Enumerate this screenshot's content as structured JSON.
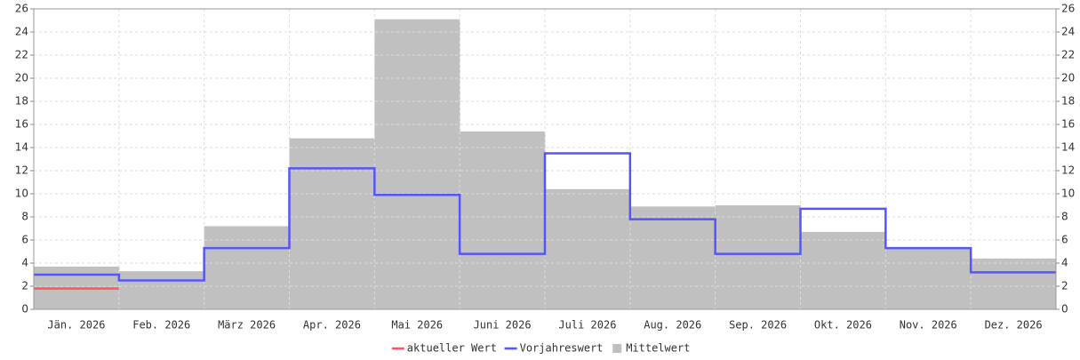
{
  "chart_data": {
    "type": "step",
    "categories": [
      "Jän. 2026",
      "Feb. 2026",
      "März 2026",
      "Apr. 2026",
      "Mai 2026",
      "Juni 2026",
      "Juli 2026",
      "Aug. 2026",
      "Sep. 2026",
      "Okt. 2026",
      "Nov. 2026",
      "Dez. 2026"
    ],
    "series": [
      {
        "name": "aktueller Wert",
        "color": "#ff5555",
        "kind": "line",
        "values": [
          1.8,
          null,
          null,
          null,
          null,
          null,
          null,
          null,
          null,
          null,
          null,
          null
        ]
      },
      {
        "name": "Vorjahreswert",
        "color": "#5555ff",
        "kind": "line",
        "values": [
          3.0,
          2.5,
          5.3,
          12.2,
          9.9,
          4.8,
          13.5,
          7.8,
          4.8,
          8.7,
          5.3,
          3.2
        ]
      },
      {
        "name": "Mittelwert",
        "color": "#c0c0c0",
        "kind": "area",
        "values": [
          3.7,
          3.3,
          7.2,
          14.8,
          25.1,
          15.4,
          10.4,
          8.9,
          9.0,
          6.7,
          5.3,
          4.4
        ]
      }
    ],
    "ylim": [
      0,
      26
    ],
    "yticks": [
      0,
      2,
      4,
      6,
      8,
      10,
      12,
      14,
      16,
      18,
      20,
      22,
      24,
      26
    ],
    "grid": true,
    "legend": "bottom"
  }
}
